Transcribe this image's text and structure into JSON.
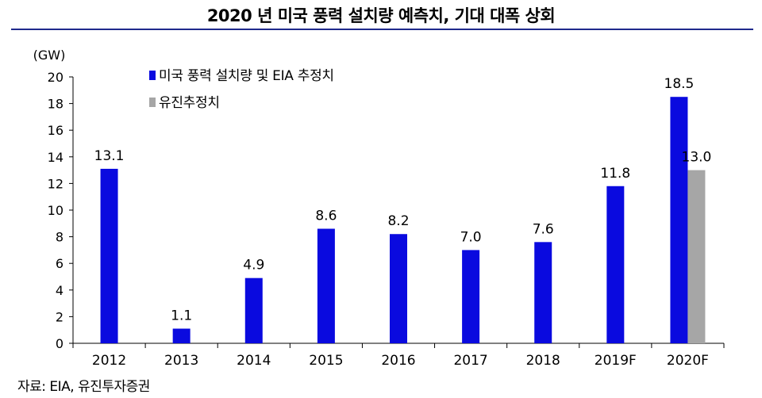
{
  "chart_data": {
    "type": "bar",
    "title": "2020 년 미국 풍력 설치량 예측치, 기대 대폭 상회",
    "ylabel": "(GW)",
    "xlabel": "",
    "ylim": [
      0,
      20
    ],
    "yticks": [
      0,
      2,
      4,
      6,
      8,
      10,
      12,
      14,
      16,
      18,
      20
    ],
    "categories": [
      "2012",
      "2013",
      "2014",
      "2015",
      "2016",
      "2017",
      "2018",
      "2019F",
      "2020F"
    ],
    "series": [
      {
        "name": "미국 풍력 설치량 및 EIA 추정치",
        "color": "#0a0adf",
        "values": [
          13.1,
          1.1,
          4.9,
          8.6,
          8.2,
          7.0,
          7.6,
          11.8,
          18.5
        ],
        "labels": [
          "13.1",
          "1.1",
          "4.9",
          "8.6",
          "8.2",
          "7.0",
          "7.6",
          "11.8",
          "18.5"
        ]
      },
      {
        "name": "유진추정치",
        "color": "#a6a6a6",
        "values": [
          null,
          null,
          null,
          null,
          null,
          null,
          null,
          null,
          13.0
        ],
        "labels": [
          null,
          null,
          null,
          null,
          null,
          null,
          null,
          null,
          "13.0"
        ]
      }
    ],
    "legend": "top-left",
    "grid": false
  },
  "source": "자료: EIA, 유진투자증권"
}
